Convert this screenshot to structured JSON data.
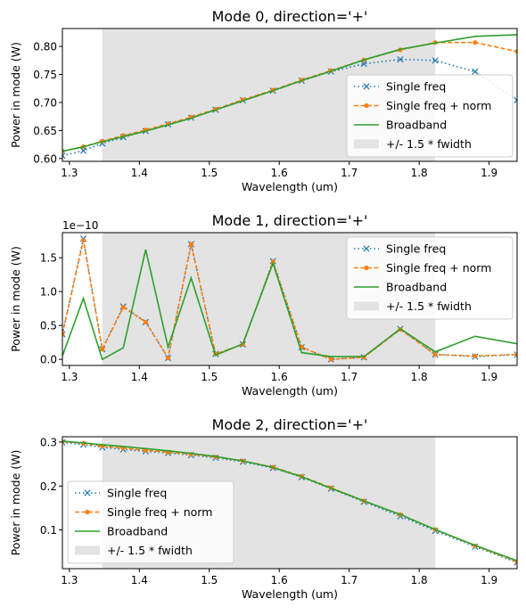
{
  "figure": {
    "background": "#ffffff",
    "colors": {
      "single_freq": "#1f77b4",
      "single_freq_norm": "#ff7f0e",
      "broadband": "#2ca02c",
      "fwidth_band": "#e3e3e3"
    }
  },
  "chart_data": [
    {
      "type": "line",
      "title": "Mode 0, direction='+'",
      "xlabel": "Wavelength (um)",
      "ylabel": "Power in mode (W)",
      "y_offset_label": "",
      "xlim": [
        1.29,
        1.94
      ],
      "ylim": [
        0.595,
        0.832
      ],
      "xticks": [
        1.3,
        1.4,
        1.5,
        1.6,
        1.7,
        1.8,
        1.9
      ],
      "xtick_labels": [
        "1.3",
        "1.4",
        "1.5",
        "1.6",
        "1.7",
        "1.8",
        "1.9"
      ],
      "yticks": [
        0.6,
        0.65,
        0.7,
        0.75,
        0.8
      ],
      "ytick_labels": [
        "0.60",
        "0.65",
        "0.70",
        "0.75",
        "0.80"
      ],
      "shaded_band": {
        "x0": 1.347,
        "x1": 1.823
      },
      "legend_position": "lower-right",
      "legend": [
        "Single freq",
        "Single freq + norm",
        "Broadband",
        "+/- 1.5 * fwidth"
      ],
      "series": [
        {
          "name": "Single freq",
          "style": "dotted-x",
          "x": [
            1.29,
            1.32,
            1.347,
            1.377,
            1.409,
            1.441,
            1.474,
            1.509,
            1.548,
            1.591,
            1.632,
            1.674,
            1.721,
            1.773,
            1.823,
            1.88,
            1.94
          ],
          "y": [
            0.605,
            0.614,
            0.627,
            0.638,
            0.649,
            0.661,
            0.673,
            0.687,
            0.704,
            0.721,
            0.739,
            0.755,
            0.769,
            0.777,
            0.775,
            0.755,
            0.704
          ]
        },
        {
          "name": "Single freq + norm",
          "style": "dashed-dot",
          "x": [
            1.29,
            1.32,
            1.347,
            1.377,
            1.409,
            1.441,
            1.474,
            1.509,
            1.548,
            1.591,
            1.632,
            1.674,
            1.721,
            1.773,
            1.823,
            1.88,
            1.94
          ],
          "y": [
            0.613,
            0.621,
            0.631,
            0.641,
            0.651,
            0.662,
            0.674,
            0.688,
            0.705,
            0.722,
            0.74,
            0.757,
            0.776,
            0.794,
            0.807,
            0.807,
            0.791
          ]
        },
        {
          "name": "Broadband",
          "style": "solid",
          "x": [
            1.29,
            1.32,
            1.347,
            1.377,
            1.409,
            1.441,
            1.474,
            1.509,
            1.548,
            1.591,
            1.632,
            1.674,
            1.721,
            1.773,
            1.823,
            1.88,
            1.94
          ],
          "y": [
            0.613,
            0.621,
            0.63,
            0.639,
            0.649,
            0.66,
            0.672,
            0.687,
            0.703,
            0.721,
            0.739,
            0.756,
            0.776,
            0.795,
            0.806,
            0.818,
            0.821
          ]
        }
      ]
    },
    {
      "type": "line",
      "title": "Mode 1, direction='+'",
      "xlabel": "Wavelength (um)",
      "ylabel": "Power in mode (W)",
      "y_offset_label": "1e−10",
      "xlim": [
        1.29,
        1.94
      ],
      "ylim": [
        -0.09,
        1.87
      ],
      "xticks": [
        1.3,
        1.4,
        1.5,
        1.6,
        1.7,
        1.8,
        1.9
      ],
      "xtick_labels": [
        "1.3",
        "1.4",
        "1.5",
        "1.6",
        "1.7",
        "1.8",
        "1.9"
      ],
      "yticks": [
        0.0,
        0.5,
        1.0,
        1.5
      ],
      "ytick_labels": [
        "0.0",
        "0.5",
        "1.0",
        "1.5"
      ],
      "shaded_band": {
        "x0": 1.347,
        "x1": 1.823
      },
      "legend_position": "upper-right",
      "legend": [
        "Single freq",
        "Single freq + norm",
        "Broadband",
        "+/- 1.5 * fwidth"
      ],
      "series": [
        {
          "name": "Single freq",
          "style": "dotted-x",
          "x": [
            1.29,
            1.32,
            1.347,
            1.377,
            1.409,
            1.441,
            1.474,
            1.509,
            1.548,
            1.591,
            1.632,
            1.674,
            1.721,
            1.773,
            1.823,
            1.88,
            1.94
          ],
          "y": [
            0.37,
            1.78,
            0.15,
            0.78,
            0.55,
            0.02,
            1.7,
            0.08,
            0.22,
            1.45,
            0.18,
            0.0,
            0.03,
            0.45,
            0.07,
            0.04,
            0.07
          ]
        },
        {
          "name": "Single freq + norm",
          "style": "dashed-dot",
          "x": [
            1.29,
            1.32,
            1.347,
            1.377,
            1.409,
            1.441,
            1.474,
            1.509,
            1.548,
            1.591,
            1.632,
            1.674,
            1.721,
            1.773,
            1.823,
            1.88,
            1.94
          ],
          "y": [
            0.37,
            1.76,
            0.15,
            0.77,
            0.55,
            0.02,
            1.7,
            0.08,
            0.22,
            1.44,
            0.18,
            0.0,
            0.03,
            0.44,
            0.07,
            0.05,
            0.07
          ]
        },
        {
          "name": "Broadband",
          "style": "solid",
          "x": [
            1.29,
            1.32,
            1.347,
            1.377,
            1.409,
            1.441,
            1.474,
            1.509,
            1.548,
            1.591,
            1.632,
            1.674,
            1.721,
            1.773,
            1.823,
            1.88,
            1.94
          ],
          "y": [
            0.05,
            0.9,
            0.0,
            0.17,
            1.62,
            0.18,
            1.2,
            0.06,
            0.23,
            1.42,
            0.1,
            0.04,
            0.04,
            0.45,
            0.11,
            0.34,
            0.23
          ]
        }
      ]
    },
    {
      "type": "line",
      "title": "Mode 2, direction='+'",
      "xlabel": "Wavelength (um)",
      "ylabel": "Power in mode (W)",
      "y_offset_label": "",
      "xlim": [
        1.29,
        1.94
      ],
      "ylim": [
        0.012,
        0.312
      ],
      "xticks": [
        1.3,
        1.4,
        1.5,
        1.6,
        1.7,
        1.8,
        1.9
      ],
      "xtick_labels": [
        "1.3",
        "1.4",
        "1.5",
        "1.6",
        "1.7",
        "1.8",
        "1.9"
      ],
      "yticks": [
        0.1,
        0.2,
        0.3
      ],
      "ytick_labels": [
        "0.1",
        "0.2",
        "0.3"
      ],
      "shaded_band": {
        "x0": 1.347,
        "x1": 1.823
      },
      "legend_position": "lower-left",
      "legend": [
        "Single freq",
        "Single freq + norm",
        "Broadband",
        "+/- 1.5 * fwidth"
      ],
      "series": [
        {
          "name": "Single freq",
          "style": "dotted-x",
          "x": [
            1.29,
            1.32,
            1.347,
            1.377,
            1.409,
            1.441,
            1.474,
            1.509,
            1.548,
            1.591,
            1.632,
            1.674,
            1.721,
            1.773,
            1.823,
            1.88,
            1.94
          ],
          "y": [
            0.299,
            0.294,
            0.288,
            0.283,
            0.279,
            0.275,
            0.27,
            0.264,
            0.255,
            0.241,
            0.22,
            0.194,
            0.164,
            0.131,
            0.098,
            0.062,
            0.026
          ]
        },
        {
          "name": "Single freq + norm",
          "style": "dashed-dot",
          "x": [
            1.29,
            1.32,
            1.347,
            1.377,
            1.409,
            1.441,
            1.474,
            1.509,
            1.548,
            1.591,
            1.632,
            1.674,
            1.721,
            1.773,
            1.823,
            1.88,
            1.94
          ],
          "y": [
            0.301,
            0.297,
            0.291,
            0.286,
            0.281,
            0.277,
            0.272,
            0.266,
            0.257,
            0.243,
            0.222,
            0.196,
            0.166,
            0.135,
            0.101,
            0.064,
            0.028
          ]
        },
        {
          "name": "Broadband",
          "style": "solid",
          "x": [
            1.29,
            1.32,
            1.347,
            1.377,
            1.409,
            1.441,
            1.474,
            1.509,
            1.548,
            1.591,
            1.632,
            1.674,
            1.721,
            1.773,
            1.823,
            1.88,
            1.94
          ],
          "y": [
            0.302,
            0.298,
            0.294,
            0.29,
            0.285,
            0.28,
            0.274,
            0.267,
            0.257,
            0.242,
            0.221,
            0.195,
            0.166,
            0.135,
            0.101,
            0.065,
            0.03
          ]
        }
      ]
    }
  ]
}
